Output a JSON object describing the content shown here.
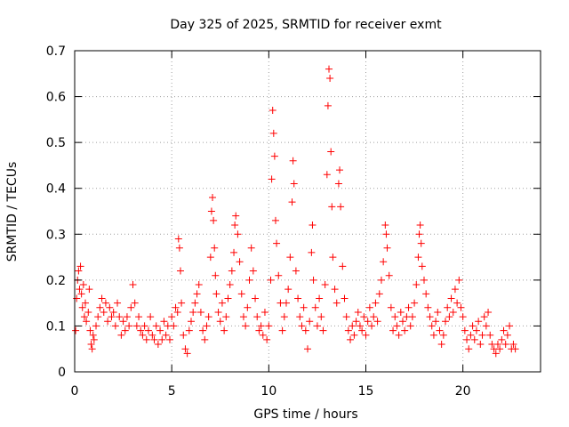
{
  "chart_data": {
    "type": "scatter",
    "title": "Day 325 of 2025, SRMTID for receiver exmt",
    "xlabel": "GPS time / hours",
    "ylabel": "SRMTID / TECUs",
    "xlim": [
      0,
      24
    ],
    "ylim": [
      0,
      0.7
    ],
    "xticks": [
      0,
      5,
      10,
      15,
      20
    ],
    "xtick_labels": [
      "0",
      "5",
      "10",
      "15",
      "20"
    ],
    "yticks": [
      0,
      0.1,
      0.2,
      0.3,
      0.4,
      0.5,
      0.6,
      0.7
    ],
    "ytick_labels": [
      "0",
      "0.1",
      "0.2",
      "0.3",
      "0.4",
      "0.5",
      "0.6",
      "0.7"
    ],
    "grid": true,
    "marker": "+",
    "marker_color": "#ff0000",
    "series": [
      {
        "name": "SRMTID",
        "points": [
          [
            0.05,
            0.09
          ],
          [
            0.1,
            0.16
          ],
          [
            0.15,
            0.2
          ],
          [
            0.2,
            0.22
          ],
          [
            0.25,
            0.18
          ],
          [
            0.3,
            0.23
          ],
          [
            0.35,
            0.17
          ],
          [
            0.4,
            0.14
          ],
          [
            0.45,
            0.19
          ],
          [
            0.5,
            0.12
          ],
          [
            0.55,
            0.15
          ],
          [
            0.6,
            0.11
          ],
          [
            0.7,
            0.13
          ],
          [
            0.75,
            0.18
          ],
          [
            0.8,
            0.09
          ],
          [
            0.85,
            0.06
          ],
          [
            0.9,
            0.05
          ],
          [
            0.95,
            0.08
          ],
          [
            1.0,
            0.07
          ],
          [
            1.1,
            0.1
          ],
          [
            1.2,
            0.12
          ],
          [
            1.3,
            0.14
          ],
          [
            1.4,
            0.16
          ],
          [
            1.5,
            0.13
          ],
          [
            1.6,
            0.15
          ],
          [
            1.7,
            0.11
          ],
          [
            1.8,
            0.14
          ],
          [
            1.9,
            0.12
          ],
          [
            2.0,
            0.13
          ],
          [
            2.1,
            0.1
          ],
          [
            2.2,
            0.15
          ],
          [
            2.3,
            0.12
          ],
          [
            2.4,
            0.08
          ],
          [
            2.5,
            0.11
          ],
          [
            2.6,
            0.09
          ],
          [
            2.7,
            0.12
          ],
          [
            2.8,
            0.1
          ],
          [
            2.9,
            0.14
          ],
          [
            3.0,
            0.19
          ],
          [
            3.1,
            0.15
          ],
          [
            3.2,
            0.1
          ],
          [
            3.3,
            0.12
          ],
          [
            3.4,
            0.09
          ],
          [
            3.5,
            0.08
          ],
          [
            3.6,
            0.1
          ],
          [
            3.7,
            0.07
          ],
          [
            3.8,
            0.09
          ],
          [
            3.9,
            0.12
          ],
          [
            4.0,
            0.08
          ],
          [
            4.1,
            0.07
          ],
          [
            4.2,
            0.1
          ],
          [
            4.3,
            0.06
          ],
          [
            4.4,
            0.09
          ],
          [
            4.5,
            0.07
          ],
          [
            4.6,
            0.11
          ],
          [
            4.7,
            0.08
          ],
          [
            4.8,
            0.1
          ],
          [
            4.9,
            0.07
          ],
          [
            5.0,
            0.12
          ],
          [
            5.1,
            0.1
          ],
          [
            5.2,
            0.14
          ],
          [
            5.3,
            0.13
          ],
          [
            5.35,
            0.29
          ],
          [
            5.4,
            0.27
          ],
          [
            5.45,
            0.22
          ],
          [
            5.5,
            0.15
          ],
          [
            5.6,
            0.08
          ],
          [
            5.7,
            0.05
          ],
          [
            5.8,
            0.04
          ],
          [
            5.9,
            0.09
          ],
          [
            6.0,
            0.11
          ],
          [
            6.1,
            0.13
          ],
          [
            6.2,
            0.15
          ],
          [
            6.3,
            0.17
          ],
          [
            6.4,
            0.19
          ],
          [
            6.5,
            0.13
          ],
          [
            6.6,
            0.09
          ],
          [
            6.7,
            0.07
          ],
          [
            6.8,
            0.1
          ],
          [
            6.9,
            0.12
          ],
          [
            7.0,
            0.25
          ],
          [
            7.05,
            0.35
          ],
          [
            7.1,
            0.38
          ],
          [
            7.15,
            0.33
          ],
          [
            7.2,
            0.27
          ],
          [
            7.25,
            0.21
          ],
          [
            7.3,
            0.17
          ],
          [
            7.4,
            0.13
          ],
          [
            7.5,
            0.11
          ],
          [
            7.6,
            0.15
          ],
          [
            7.7,
            0.09
          ],
          [
            7.8,
            0.12
          ],
          [
            7.9,
            0.16
          ],
          [
            8.0,
            0.19
          ],
          [
            8.1,
            0.22
          ],
          [
            8.2,
            0.26
          ],
          [
            8.25,
            0.32
          ],
          [
            8.3,
            0.34
          ],
          [
            8.4,
            0.3
          ],
          [
            8.5,
            0.24
          ],
          [
            8.6,
            0.17
          ],
          [
            8.7,
            0.12
          ],
          [
            8.8,
            0.1
          ],
          [
            8.9,
            0.14
          ],
          [
            9.0,
            0.2
          ],
          [
            9.1,
            0.27
          ],
          [
            9.2,
            0.22
          ],
          [
            9.3,
            0.16
          ],
          [
            9.4,
            0.12
          ],
          [
            9.5,
            0.09
          ],
          [
            9.6,
            0.1
          ],
          [
            9.7,
            0.08
          ],
          [
            9.8,
            0.13
          ],
          [
            9.9,
            0.07
          ],
          [
            10.0,
            0.1
          ],
          [
            10.1,
            0.2
          ],
          [
            10.15,
            0.42
          ],
          [
            10.2,
            0.57
          ],
          [
            10.25,
            0.52
          ],
          [
            10.3,
            0.47
          ],
          [
            10.35,
            0.33
          ],
          [
            10.4,
            0.28
          ],
          [
            10.5,
            0.21
          ],
          [
            10.6,
            0.15
          ],
          [
            10.7,
            0.09
          ],
          [
            10.8,
            0.12
          ],
          [
            10.9,
            0.15
          ],
          [
            11.0,
            0.18
          ],
          [
            11.1,
            0.25
          ],
          [
            11.2,
            0.37
          ],
          [
            11.25,
            0.46
          ],
          [
            11.3,
            0.41
          ],
          [
            11.4,
            0.22
          ],
          [
            11.5,
            0.16
          ],
          [
            11.6,
            0.12
          ],
          [
            11.7,
            0.1
          ],
          [
            11.8,
            0.14
          ],
          [
            11.9,
            0.09
          ],
          [
            12.0,
            0.05
          ],
          [
            12.1,
            0.11
          ],
          [
            12.2,
            0.26
          ],
          [
            12.25,
            0.32
          ],
          [
            12.3,
            0.2
          ],
          [
            12.4,
            0.14
          ],
          [
            12.5,
            0.1
          ],
          [
            12.6,
            0.16
          ],
          [
            12.7,
            0.12
          ],
          [
            12.8,
            0.09
          ],
          [
            12.9,
            0.19
          ],
          [
            13.0,
            0.43
          ],
          [
            13.05,
            0.58
          ],
          [
            13.1,
            0.66
          ],
          [
            13.15,
            0.64
          ],
          [
            13.2,
            0.48
          ],
          [
            13.25,
            0.36
          ],
          [
            13.3,
            0.25
          ],
          [
            13.4,
            0.18
          ],
          [
            13.5,
            0.15
          ],
          [
            13.6,
            0.41
          ],
          [
            13.65,
            0.44
          ],
          [
            13.7,
            0.36
          ],
          [
            13.8,
            0.23
          ],
          [
            13.9,
            0.16
          ],
          [
            14.0,
            0.12
          ],
          [
            14.1,
            0.09
          ],
          [
            14.2,
            0.07
          ],
          [
            14.3,
            0.1
          ],
          [
            14.4,
            0.08
          ],
          [
            14.5,
            0.11
          ],
          [
            14.6,
            0.13
          ],
          [
            14.7,
            0.1
          ],
          [
            14.8,
            0.09
          ],
          [
            14.9,
            0.12
          ],
          [
            15.0,
            0.08
          ],
          [
            15.1,
            0.11
          ],
          [
            15.2,
            0.14
          ],
          [
            15.3,
            0.1
          ],
          [
            15.4,
            0.12
          ],
          [
            15.5,
            0.15
          ],
          [
            15.6,
            0.11
          ],
          [
            15.7,
            0.17
          ],
          [
            15.8,
            0.2
          ],
          [
            15.9,
            0.24
          ],
          [
            16.0,
            0.32
          ],
          [
            16.05,
            0.3
          ],
          [
            16.1,
            0.27
          ],
          [
            16.2,
            0.21
          ],
          [
            16.3,
            0.14
          ],
          [
            16.4,
            0.09
          ],
          [
            16.5,
            0.12
          ],
          [
            16.6,
            0.1
          ],
          [
            16.7,
            0.08
          ],
          [
            16.8,
            0.13
          ],
          [
            16.9,
            0.11
          ],
          [
            17.0,
            0.09
          ],
          [
            17.1,
            0.12
          ],
          [
            17.2,
            0.14
          ],
          [
            17.3,
            0.1
          ],
          [
            17.4,
            0.12
          ],
          [
            17.5,
            0.15
          ],
          [
            17.6,
            0.19
          ],
          [
            17.7,
            0.25
          ],
          [
            17.75,
            0.3
          ],
          [
            17.8,
            0.32
          ],
          [
            17.85,
            0.28
          ],
          [
            17.9,
            0.23
          ],
          [
            18.0,
            0.2
          ],
          [
            18.1,
            0.17
          ],
          [
            18.2,
            0.14
          ],
          [
            18.3,
            0.12
          ],
          [
            18.4,
            0.1
          ],
          [
            18.5,
            0.08
          ],
          [
            18.6,
            0.11
          ],
          [
            18.7,
            0.13
          ],
          [
            18.8,
            0.09
          ],
          [
            18.9,
            0.06
          ],
          [
            19.0,
            0.08
          ],
          [
            19.1,
            0.11
          ],
          [
            19.2,
            0.14
          ],
          [
            19.3,
            0.12
          ],
          [
            19.4,
            0.16
          ],
          [
            19.5,
            0.13
          ],
          [
            19.6,
            0.18
          ],
          [
            19.7,
            0.15
          ],
          [
            19.8,
            0.2
          ],
          [
            19.9,
            0.14
          ],
          [
            20.0,
            0.12
          ],
          [
            20.1,
            0.09
          ],
          [
            20.2,
            0.07
          ],
          [
            20.3,
            0.05
          ],
          [
            20.4,
            0.08
          ],
          [
            20.5,
            0.1
          ],
          [
            20.6,
            0.07
          ],
          [
            20.7,
            0.09
          ],
          [
            20.8,
            0.11
          ],
          [
            20.9,
            0.06
          ],
          [
            21.0,
            0.08
          ],
          [
            21.1,
            0.12
          ],
          [
            21.2,
            0.1
          ],
          [
            21.3,
            0.13
          ],
          [
            21.4,
            0.08
          ],
          [
            21.5,
            0.06
          ],
          [
            21.6,
            0.05
          ],
          [
            21.7,
            0.04
          ],
          [
            21.8,
            0.06
          ],
          [
            21.9,
            0.05
          ],
          [
            22.0,
            0.07
          ],
          [
            22.1,
            0.09
          ],
          [
            22.2,
            0.06
          ],
          [
            22.3,
            0.08
          ],
          [
            22.4,
            0.1
          ],
          [
            22.5,
            0.05
          ],
          [
            22.6,
            0.06
          ],
          [
            22.7,
            0.05
          ]
        ]
      }
    ]
  }
}
